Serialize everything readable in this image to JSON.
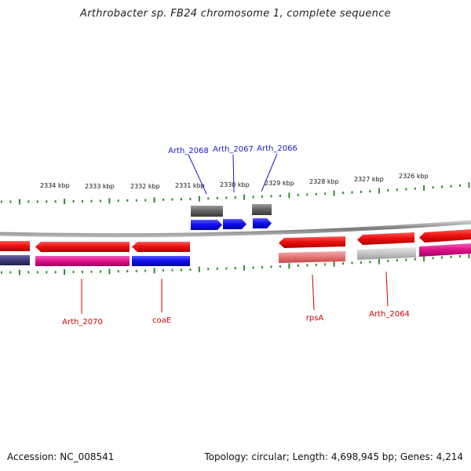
{
  "title": "Arthrobacter sp. FB24 chromosome 1, complete sequence",
  "scale_labels": [
    "2334 kbp",
    "2333 kbp",
    "2332 kbp",
    "2331 kbp",
    "2330 kbp",
    "2329 kbp",
    "2328 kbp",
    "2327 kbp",
    "2326 kbp"
  ],
  "gene_labels_top": [
    "Arth_2068",
    "Arth_2067",
    "Arth_2066"
  ],
  "gene_labels_bottom": [
    "Arth_2070",
    "coaE",
    "rpsA",
    "Arth_2064"
  ],
  "footer": {
    "accession": "Accession: NC_008541",
    "summary": "Topology: circular; Length: 4,698,945 bp; Genes: 4,214"
  },
  "colors": {
    "backbone": "#8c8c8c",
    "ticks": "#2e8b2e",
    "gene_red": "#ee1111",
    "gene_blue": "#1111ee",
    "gene_magenta": "#e0148c",
    "gene_grey": "#666666",
    "gene_light_grey": "#c8c8c8",
    "gene_pink": "#e87a7a",
    "gene_navy": "#3c3c7a",
    "label_blue": "#1a1acc",
    "label_red": "#cc0000"
  }
}
